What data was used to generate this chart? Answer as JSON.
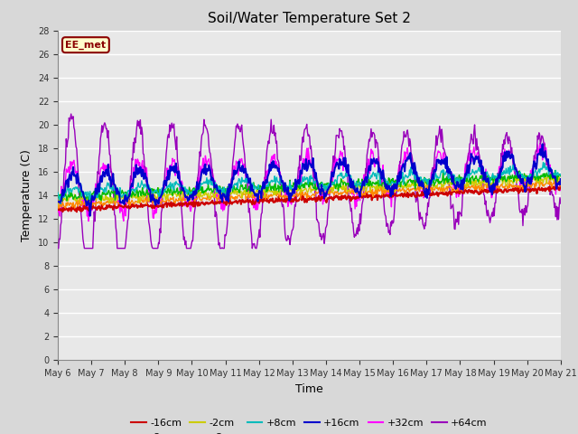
{
  "title": "Soil/Water Temperature Set 2",
  "xlabel": "Time",
  "ylabel": "Temperature (C)",
  "ylim": [
    0,
    28
  ],
  "yticks": [
    0,
    2,
    4,
    6,
    8,
    10,
    12,
    14,
    16,
    18,
    20,
    22,
    24,
    26,
    28
  ],
  "x_tick_labels": [
    "May 6",
    "May 7",
    "May 8",
    "May 9",
    "May 10",
    "May 11",
    "May 12",
    "May 13",
    "May 14",
    "May 15",
    "May 16",
    "May 17",
    "May 18",
    "May 19",
    "May 20",
    "May 21"
  ],
  "legend_label": "EE_met",
  "legend_box_color": "#ffffcc",
  "legend_box_border": "#8b0000",
  "series_colors": {
    "-16cm": "#cc0000",
    "-8cm": "#ff8800",
    "-2cm": "#cccc00",
    "+2cm": "#00bb00",
    "+8cm": "#00bbbb",
    "+16cm": "#0000cc",
    "+32cm": "#ff00ff",
    "+64cm": "#9900bb"
  },
  "fig_bg_color": "#d8d8d8",
  "plot_bg_color": "#e8e8e8",
  "grid_color": "#ffffff",
  "n_days": 15,
  "pts_per_day": 48
}
